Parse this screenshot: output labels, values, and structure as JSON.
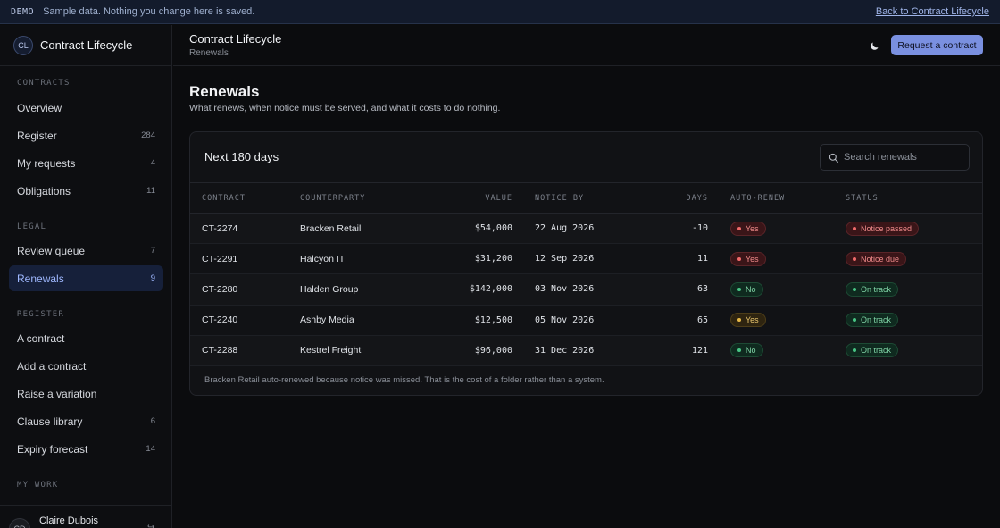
{
  "demo_bar": {
    "tag": "DEMO",
    "message": "Sample data. Nothing you change here is saved.",
    "back_link": "Back to Contract Lifecycle"
  },
  "brand": {
    "initials": "CL",
    "name": "Contract Lifecycle"
  },
  "sidebar": {
    "sections": [
      {
        "label": "CONTRACTS",
        "items": [
          {
            "label": "Overview",
            "count": ""
          },
          {
            "label": "Register",
            "count": "284"
          },
          {
            "label": "My requests",
            "count": "4"
          },
          {
            "label": "Obligations",
            "count": "11"
          }
        ]
      },
      {
        "label": "LEGAL",
        "items": [
          {
            "label": "Review queue",
            "count": "7"
          },
          {
            "label": "Renewals",
            "count": "9",
            "active": true
          }
        ]
      },
      {
        "label": "REGISTER",
        "items": [
          {
            "label": "A contract",
            "count": ""
          },
          {
            "label": "Add a contract",
            "count": ""
          },
          {
            "label": "Raise a variation",
            "count": ""
          },
          {
            "label": "Clause library",
            "count": "6"
          },
          {
            "label": "Expiry forecast",
            "count": "14"
          }
        ]
      },
      {
        "label": "MY WORK",
        "items": []
      }
    ],
    "user": {
      "initials": "CD",
      "name": "Claire Dubois"
    }
  },
  "header": {
    "title": "Contract Lifecycle",
    "breadcrumb": "Renewals",
    "primary_button": "Request a contract",
    "theme_icon": "moon-icon"
  },
  "page": {
    "title": "Renewals",
    "description": "What renews, when notice must be served, and what it costs to do nothing."
  },
  "card": {
    "title": "Next 180 days",
    "search_placeholder": "Search renewals",
    "columns": [
      "CONTRACT",
      "COUNTERPARTY",
      "VALUE",
      "NOTICE BY",
      "DAYS",
      "AUTO-RENEW",
      "STATUS"
    ],
    "rows": [
      {
        "contract": "CT-2274",
        "counterparty": "Bracken Retail",
        "value": "$54,000",
        "notice_by": "22 Aug 2026",
        "days": "-10",
        "auto_renew": "Yes",
        "auto_tone": "red",
        "status": "Notice passed",
        "status_tone": "red"
      },
      {
        "contract": "CT-2291",
        "counterparty": "Halcyon IT",
        "value": "$31,200",
        "notice_by": "12 Sep 2026",
        "days": "11",
        "auto_renew": "Yes",
        "auto_tone": "red",
        "status": "Notice due",
        "status_tone": "red"
      },
      {
        "contract": "CT-2280",
        "counterparty": "Halden Group",
        "value": "$142,000",
        "notice_by": "03 Nov 2026",
        "days": "63",
        "auto_renew": "No",
        "auto_tone": "green",
        "status": "On track",
        "status_tone": "green"
      },
      {
        "contract": "CT-2240",
        "counterparty": "Ashby Media",
        "value": "$12,500",
        "notice_by": "05 Nov 2026",
        "days": "65",
        "auto_renew": "Yes",
        "auto_tone": "amber",
        "status": "On track",
        "status_tone": "green"
      },
      {
        "contract": "CT-2288",
        "counterparty": "Kestrel Freight",
        "value": "$96,000",
        "notice_by": "31 Dec 2026",
        "days": "121",
        "auto_renew": "No",
        "auto_tone": "green",
        "status": "On track",
        "status_tone": "green"
      }
    ],
    "note": "Bracken Retail auto-renewed because notice was missed. That is the cost of a folder rather than a system."
  },
  "colors": {
    "accent": "#7a90e0",
    "danger": "#f06a6a",
    "success": "#48c585",
    "warning": "#e6b847"
  }
}
